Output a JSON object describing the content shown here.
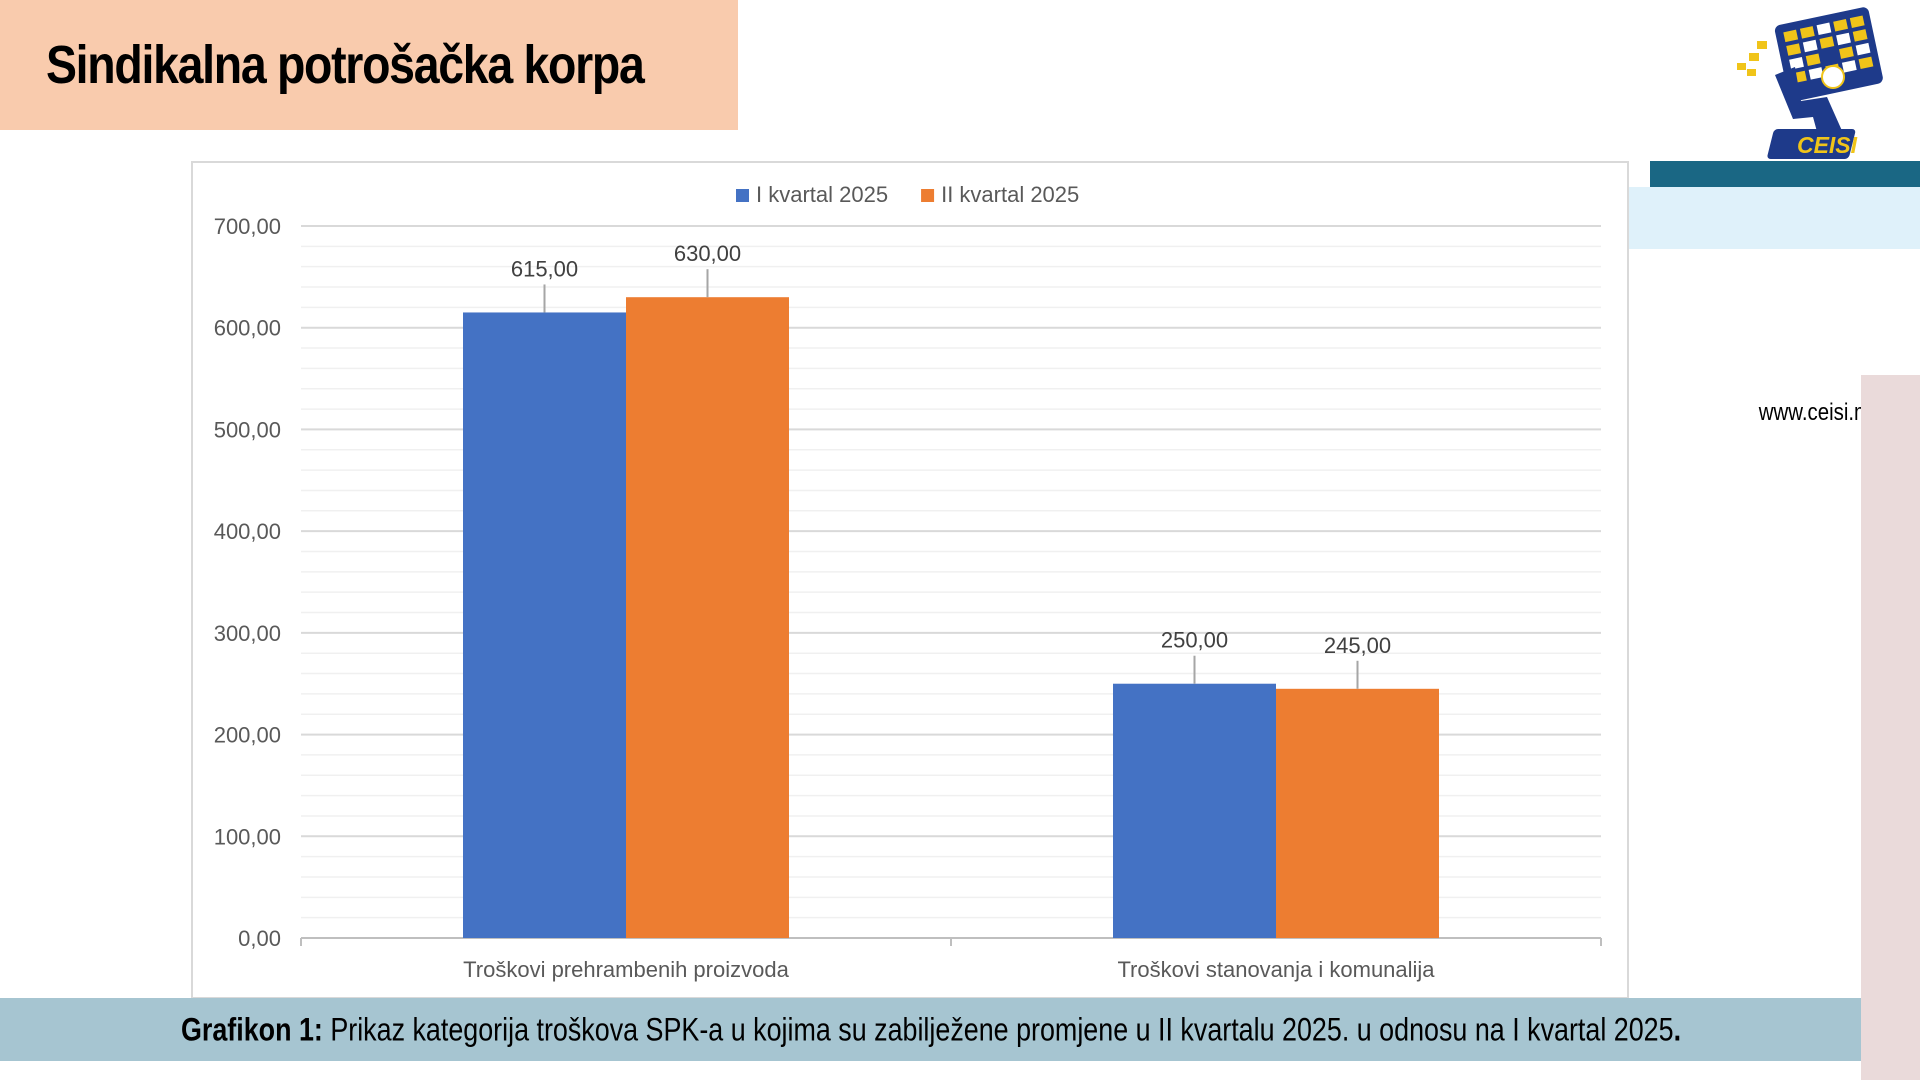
{
  "header": {
    "title": "Sindikalna potrošačka korpa"
  },
  "brand": {
    "logo_text": "CEISI",
    "website": "www.ceisi.me"
  },
  "caption": {
    "label": "Grafikon 1:",
    "text": " Prikaz kategorija troškova SPK-a u kojima su zabilježene promjene u II kvartalu 2025. u odnosu na I kvartal 2025",
    "end": "."
  },
  "colors": {
    "series_1": "#4472c4",
    "series_2": "#ed7d31",
    "title_bg": "#f9cbad",
    "caption_bg": "#a6c5d1",
    "teal_band": "#1a6784"
  },
  "chart_data": {
    "type": "bar",
    "categories": [
      "Troškovi prehrambenih proizvoda",
      "Troškovi stanovanja i komunalija"
    ],
    "series": [
      {
        "name": "I kvartal 2025",
        "values": [
          615,
          250
        ],
        "labels": [
          "615,00",
          "250,00"
        ]
      },
      {
        "name": "II kvartal 2025",
        "values": [
          630,
          245
        ],
        "labels": [
          "630,00",
          "245,00"
        ]
      }
    ],
    "yticks": [
      "0,00",
      "100,00",
      "200,00",
      "300,00",
      "400,00",
      "500,00",
      "600,00",
      "700,00"
    ],
    "ylim": [
      0,
      700
    ],
    "legend": "top",
    "grid": true
  }
}
